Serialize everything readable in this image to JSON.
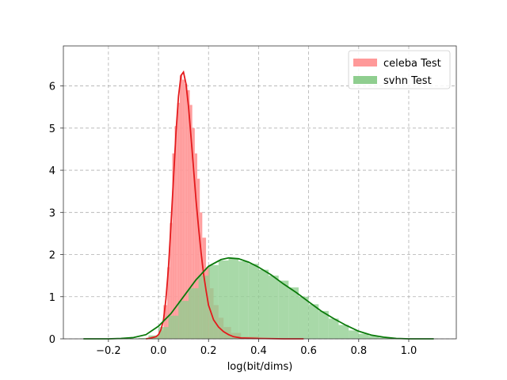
{
  "chart_data": {
    "type": "histogram",
    "title": "",
    "xlabel": "log(bit/dims)",
    "ylabel": "",
    "xlim": [
      -0.38,
      1.19
    ],
    "ylim": [
      0,
      6.95
    ],
    "xticks": [
      -0.2,
      0.0,
      0.2,
      0.4,
      0.6,
      0.8,
      1.0
    ],
    "xtick_labels": [
      "−0.2",
      "0.0",
      "0.2",
      "0.4",
      "0.6",
      "0.8",
      "1.0"
    ],
    "yticks": [
      0,
      1,
      2,
      3,
      4,
      5,
      6
    ],
    "ytick_labels": [
      "0",
      "1",
      "2",
      "3",
      "4",
      "5",
      "6"
    ],
    "grid": true,
    "legend_position": "top-right",
    "series": [
      {
        "name": "celeba Test",
        "bar_color": "#ff9999",
        "line_color": "#e41a1c",
        "bins": [
          [
            -0.03,
            0.0,
            0.05
          ],
          [
            0.0,
            0.02,
            0.2
          ],
          [
            0.02,
            0.035,
            0.8
          ],
          [
            0.035,
            0.045,
            1.7
          ],
          [
            0.045,
            0.055,
            2.75
          ],
          [
            0.055,
            0.065,
            4.4
          ],
          [
            0.065,
            0.075,
            5.05
          ],
          [
            0.075,
            0.085,
            5.6
          ],
          [
            0.085,
            0.095,
            6.25
          ],
          [
            0.095,
            0.105,
            6.15
          ],
          [
            0.105,
            0.115,
            6.05
          ],
          [
            0.115,
            0.125,
            5.9
          ],
          [
            0.125,
            0.135,
            5.55
          ],
          [
            0.135,
            0.145,
            5.0
          ],
          [
            0.145,
            0.155,
            4.4
          ],
          [
            0.155,
            0.165,
            3.8
          ],
          [
            0.165,
            0.175,
            3.0
          ],
          [
            0.175,
            0.19,
            2.4
          ],
          [
            0.19,
            0.205,
            1.7
          ],
          [
            0.205,
            0.22,
            1.2
          ],
          [
            0.22,
            0.24,
            0.8
          ],
          [
            0.24,
            0.26,
            0.5
          ],
          [
            0.26,
            0.29,
            0.28
          ],
          [
            0.29,
            0.33,
            0.14
          ],
          [
            0.33,
            0.4,
            0.05
          ],
          [
            0.4,
            0.58,
            0.01
          ]
        ],
        "kde": [
          [
            -0.05,
            0.0
          ],
          [
            -0.03,
            0.02
          ],
          [
            -0.01,
            0.05
          ],
          [
            0.0,
            0.1
          ],
          [
            0.01,
            0.22
          ],
          [
            0.02,
            0.45
          ],
          [
            0.03,
            0.95
          ],
          [
            0.04,
            1.7
          ],
          [
            0.05,
            2.7
          ],
          [
            0.06,
            3.8
          ],
          [
            0.07,
            4.9
          ],
          [
            0.08,
            5.75
          ],
          [
            0.09,
            6.25
          ],
          [
            0.1,
            6.33
          ],
          [
            0.11,
            6.05
          ],
          [
            0.12,
            5.5
          ],
          [
            0.13,
            4.8
          ],
          [
            0.14,
            4.05
          ],
          [
            0.15,
            3.3
          ],
          [
            0.16,
            2.65
          ],
          [
            0.17,
            2.05
          ],
          [
            0.18,
            1.55
          ],
          [
            0.19,
            1.15
          ],
          [
            0.2,
            0.8
          ],
          [
            0.22,
            0.45
          ],
          [
            0.24,
            0.28
          ],
          [
            0.26,
            0.17
          ],
          [
            0.28,
            0.1
          ],
          [
            0.3,
            0.05
          ],
          [
            0.33,
            0.02
          ],
          [
            0.4,
            0.01
          ],
          [
            0.5,
            0.0
          ],
          [
            0.58,
            0.0
          ]
        ]
      },
      {
        "name": "svhn Test",
        "bar_color": "#8fce8f",
        "line_color": "#0a7a0a",
        "bins": [
          [
            -0.08,
            -0.04,
            0.02
          ],
          [
            -0.04,
            0.0,
            0.08
          ],
          [
            0.0,
            0.04,
            0.28
          ],
          [
            0.04,
            0.08,
            0.55
          ],
          [
            0.08,
            0.12,
            0.9
          ],
          [
            0.12,
            0.16,
            1.2
          ],
          [
            0.16,
            0.2,
            1.5
          ],
          [
            0.2,
            0.24,
            1.75
          ],
          [
            0.24,
            0.28,
            1.86
          ],
          [
            0.28,
            0.32,
            1.9
          ],
          [
            0.32,
            0.36,
            1.84
          ],
          [
            0.36,
            0.4,
            1.78
          ],
          [
            0.4,
            0.44,
            1.64
          ],
          [
            0.44,
            0.48,
            1.5
          ],
          [
            0.48,
            0.52,
            1.38
          ],
          [
            0.52,
            0.56,
            1.22
          ],
          [
            0.56,
            0.6,
            1.0
          ],
          [
            0.6,
            0.64,
            0.82
          ],
          [
            0.64,
            0.68,
            0.66
          ],
          [
            0.68,
            0.72,
            0.48
          ],
          [
            0.72,
            0.76,
            0.33
          ],
          [
            0.76,
            0.8,
            0.2
          ],
          [
            0.8,
            0.84,
            0.12
          ],
          [
            0.84,
            0.88,
            0.07
          ],
          [
            0.88,
            0.92,
            0.03
          ],
          [
            0.92,
            0.96,
            0.01
          ]
        ],
        "kde": [
          [
            -0.3,
            0.0
          ],
          [
            -0.2,
            0.0
          ],
          [
            -0.15,
            0.01
          ],
          [
            -0.1,
            0.03
          ],
          [
            -0.05,
            0.1
          ],
          [
            0.0,
            0.3
          ],
          [
            0.05,
            0.6
          ],
          [
            0.1,
            1.0
          ],
          [
            0.15,
            1.4
          ],
          [
            0.2,
            1.72
          ],
          [
            0.25,
            1.88
          ],
          [
            0.28,
            1.92
          ],
          [
            0.32,
            1.9
          ],
          [
            0.36,
            1.82
          ],
          [
            0.4,
            1.7
          ],
          [
            0.45,
            1.52
          ],
          [
            0.5,
            1.3
          ],
          [
            0.55,
            1.1
          ],
          [
            0.6,
            0.88
          ],
          [
            0.65,
            0.66
          ],
          [
            0.7,
            0.48
          ],
          [
            0.75,
            0.32
          ],
          [
            0.8,
            0.18
          ],
          [
            0.85,
            0.09
          ],
          [
            0.9,
            0.04
          ],
          [
            0.95,
            0.01
          ],
          [
            1.0,
            0.0
          ],
          [
            1.1,
            0.0
          ]
        ]
      }
    ]
  }
}
